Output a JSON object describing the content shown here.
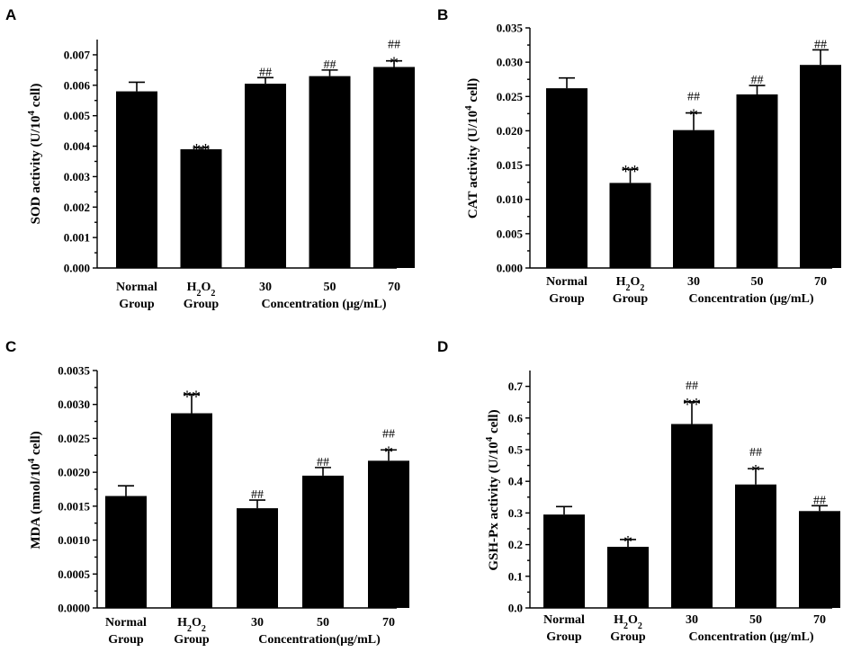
{
  "chart_data": [
    {
      "panel": "A",
      "type": "bar",
      "ylabel": "SOD activity (U/10^4 cell)",
      "ylabel_parts": [
        "SOD activity (U/10",
        "4",
        " cell)"
      ],
      "ylim": [
        0,
        0.0075
      ],
      "yticks": [
        "0.000",
        "0.001",
        "0.002",
        "0.003",
        "0.004",
        "0.005",
        "0.006",
        "0.007"
      ],
      "ytick_values": [
        0,
        0.001,
        0.002,
        0.003,
        0.004,
        0.005,
        0.006,
        0.007
      ],
      "categories": [
        {
          "lines": [
            "Normal",
            "Group"
          ]
        },
        {
          "lines": [
            "H2O2",
            "Group"
          ],
          "h2o2": true
        },
        {
          "lines": [
            "30"
          ]
        },
        {
          "lines": [
            "50"
          ]
        },
        {
          "lines": [
            "70"
          ]
        }
      ],
      "concentration_label": "Concentration (μg/mL)",
      "values": [
        0.0058,
        0.0039,
        0.00605,
        0.0063,
        0.0066
      ],
      "errors": [
        0.0003,
        5e-05,
        0.0002,
        0.0002,
        0.0002
      ],
      "significance": [
        {
          "hash": "",
          "star": ""
        },
        {
          "hash": "",
          "star": "**"
        },
        {
          "hash": "##",
          "star": ""
        },
        {
          "hash": "##",
          "star": ""
        },
        {
          "hash": "##",
          "star": "*"
        }
      ]
    },
    {
      "panel": "B",
      "type": "bar",
      "ylabel": "CAT activity (U/10^4 cell)",
      "ylabel_parts": [
        "CAT activity (U/10",
        "4",
        " cell)"
      ],
      "ylim": [
        0,
        0.035
      ],
      "yticks": [
        "0.000",
        "0.005",
        "0.010",
        "0.015",
        "0.020",
        "0.025",
        "0.030",
        "0.035"
      ],
      "ytick_values": [
        0,
        0.005,
        0.01,
        0.015,
        0.02,
        0.025,
        0.03,
        0.035
      ],
      "categories": [
        {
          "lines": [
            "Normal",
            "Group"
          ]
        },
        {
          "lines": [
            "H2O2",
            "Group"
          ],
          "h2o2": true
        },
        {
          "lines": [
            "30"
          ]
        },
        {
          "lines": [
            "50"
          ]
        },
        {
          "lines": [
            "70"
          ]
        }
      ],
      "concentration_label": "Concentration (μg/mL)",
      "values": [
        0.0262,
        0.0124,
        0.0201,
        0.0253,
        0.0296
      ],
      "errors": [
        0.0015,
        0.002,
        0.0025,
        0.0013,
        0.0022
      ],
      "significance": [
        {
          "hash": "",
          "star": ""
        },
        {
          "hash": "",
          "star": "**"
        },
        {
          "hash": "##",
          "star": "*"
        },
        {
          "hash": "##",
          "star": ""
        },
        {
          "hash": "##",
          "star": ""
        }
      ]
    },
    {
      "panel": "C",
      "type": "bar",
      "ylabel": "MDA (nmol/10^4 cell)",
      "ylabel_parts": [
        "MDA (nmol/10",
        "4",
        " cell)"
      ],
      "ylim": [
        0,
        0.0035
      ],
      "yticks": [
        "0.0000",
        "0.0005",
        "0.0010",
        "0.0015",
        "0.0020",
        "0.0025",
        "0.0030",
        "0.0035"
      ],
      "ytick_values": [
        0,
        0.0005,
        0.001,
        0.0015,
        0.002,
        0.0025,
        0.003,
        0.0035
      ],
      "categories": [
        {
          "lines": [
            "Normal",
            "Group"
          ]
        },
        {
          "lines": [
            "H2O2",
            "Group"
          ],
          "h2o2": true
        },
        {
          "lines": [
            "30"
          ]
        },
        {
          "lines": [
            "50"
          ]
        },
        {
          "lines": [
            "70"
          ]
        }
      ],
      "concentration_label": "Concentration(μg/mL)",
      "values": [
        0.00165,
        0.00287,
        0.00147,
        0.00195,
        0.00217
      ],
      "errors": [
        0.00015,
        0.00028,
        0.00012,
        0.00012,
        0.00016
      ],
      "significance": [
        {
          "hash": "",
          "star": ""
        },
        {
          "hash": "",
          "star": "**"
        },
        {
          "hash": "##",
          "star": ""
        },
        {
          "hash": "##",
          "star": ""
        },
        {
          "hash": "##",
          "star": "*"
        }
      ]
    },
    {
      "panel": "D",
      "type": "bar",
      "ylabel": "GSH-Px activity (U/10^4 cell)",
      "ylabel_parts": [
        "GSH-Px activity (U/10",
        "4",
        " cell)"
      ],
      "ylim": [
        0,
        0.75
      ],
      "yticks": [
        "0.0",
        "0.1",
        "0.2",
        "0.3",
        "0.4",
        "0.5",
        "0.6",
        "0.7"
      ],
      "ytick_values": [
        0,
        0.1,
        0.2,
        0.3,
        0.4,
        0.5,
        0.6,
        0.7
      ],
      "categories": [
        {
          "lines": [
            "Normal",
            "Group"
          ]
        },
        {
          "lines": [
            "H2O2",
            "Group"
          ],
          "h2o2": true
        },
        {
          "lines": [
            "30"
          ]
        },
        {
          "lines": [
            "50"
          ]
        },
        {
          "lines": [
            "70"
          ]
        }
      ],
      "concentration_label": "Concentration (μg/mL)",
      "values": [
        0.295,
        0.193,
        0.581,
        0.39,
        0.306
      ],
      "errors": [
        0.025,
        0.023,
        0.07,
        0.05,
        0.017
      ],
      "significance": [
        {
          "hash": "",
          "star": ""
        },
        {
          "hash": "",
          "star": "*"
        },
        {
          "hash": "##",
          "star": "**"
        },
        {
          "hash": "##",
          "star": "*"
        },
        {
          "hash": "##",
          "star": ""
        }
      ]
    }
  ]
}
